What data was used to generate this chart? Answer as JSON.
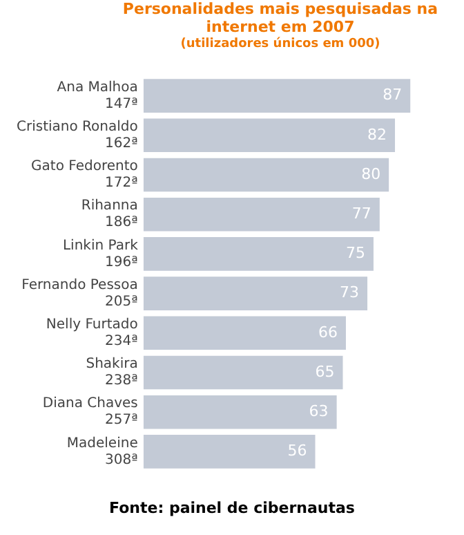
{
  "chart_data": {
    "type": "bar",
    "orientation": "horizontal",
    "title": "Personalidades mais pesquisadas na internet em 2007",
    "subtitle": "(utilizadores únicos em 000)",
    "categories": [
      "Ana Malhoa\n147ª",
      "Cristiano Ronaldo\n162ª",
      "Gato Fedorento\n172ª",
      "Rihanna\n186ª",
      "Linkin Park\n196ª",
      "Fernando Pessoa\n205ª",
      "Nelly Furtado\n234ª",
      "Shakira\n238ª",
      "Diana Chaves\n257ª",
      "Madeleine\n308ª"
    ],
    "values": [
      87,
      82,
      80,
      77,
      75,
      73,
      66,
      65,
      63,
      56
    ],
    "color": "#c3cad6",
    "data_labels": true,
    "grid": false,
    "legend": false,
    "annotations": [
      "Fonte: painel de cibernautas"
    ]
  }
}
